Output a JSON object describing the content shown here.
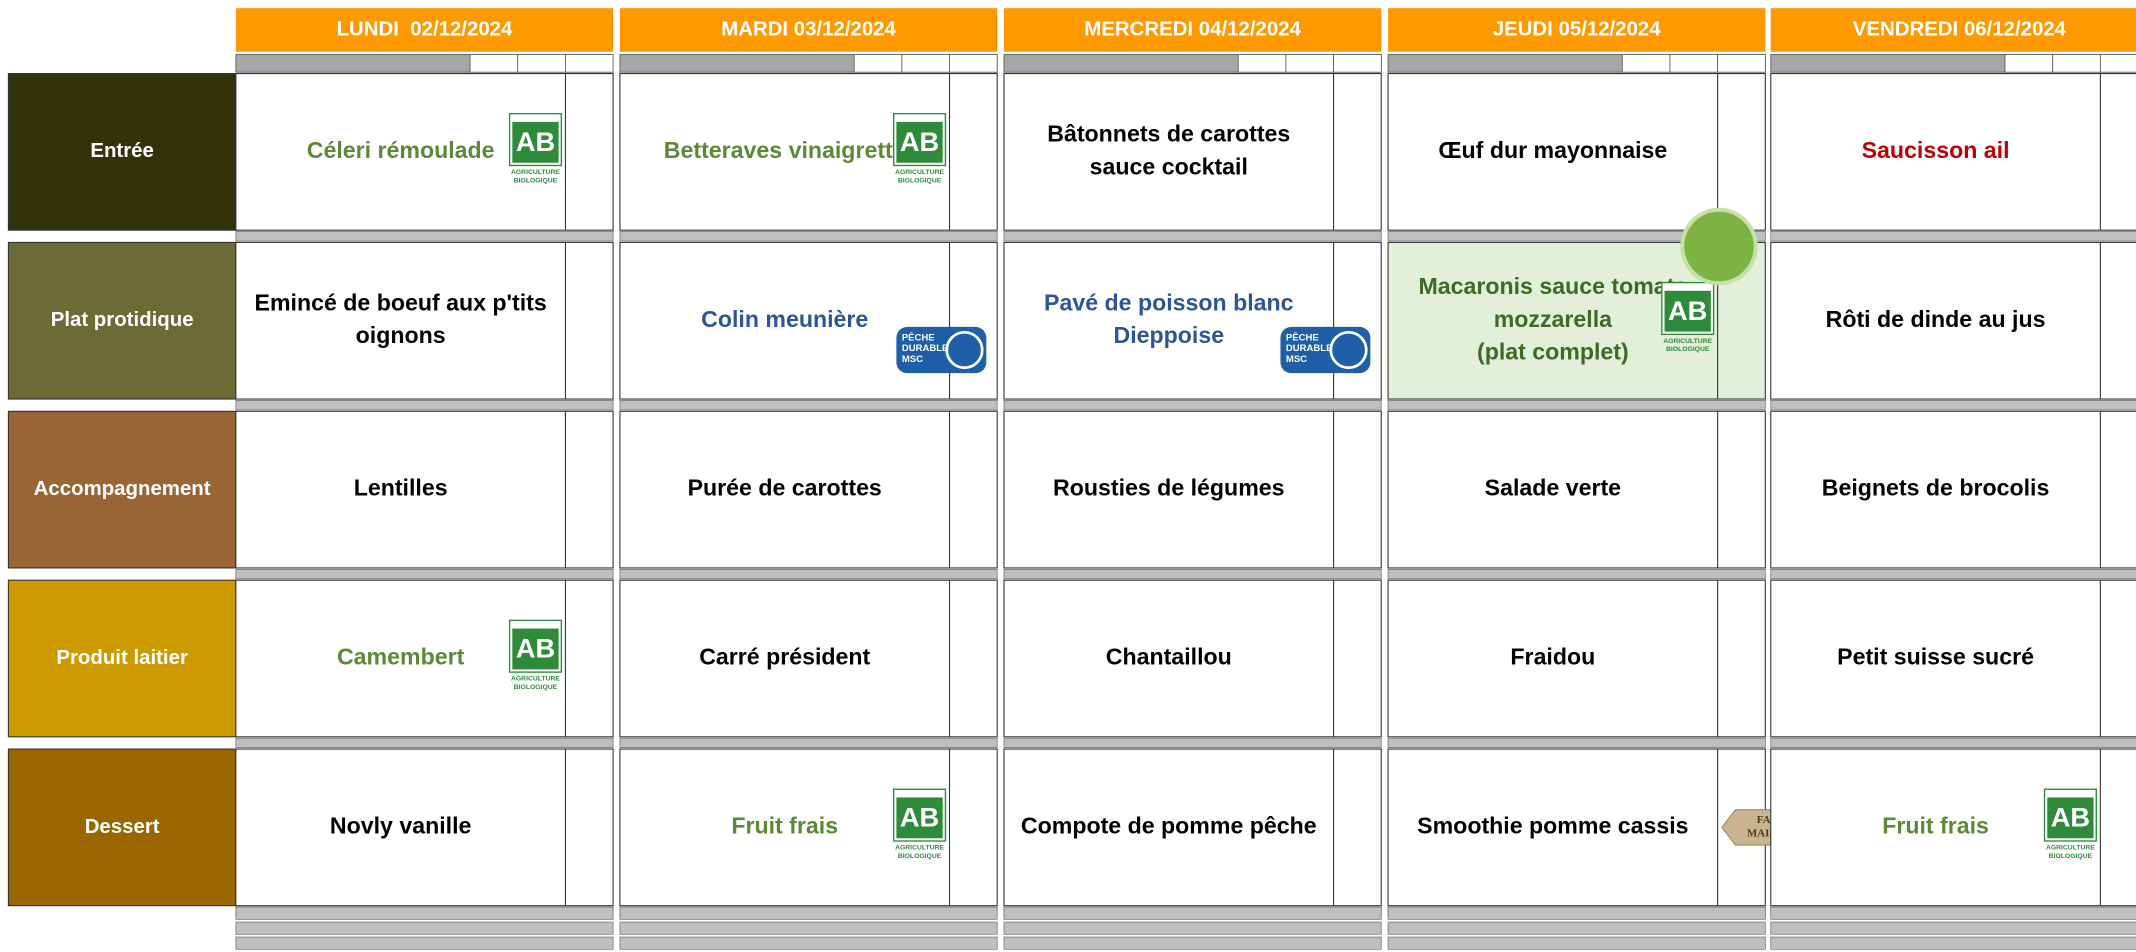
{
  "days": [
    "LUNDI  02/12/2024",
    "MARDI 03/12/2024",
    "MERCREDI 04/12/2024",
    "JEUDI 05/12/2024",
    "VENDREDI 06/12/2024"
  ],
  "rows": [
    {
      "label": "Entrée",
      "color": "#33330a",
      "cells": [
        {
          "lines": [
            "Céleri rémoulade"
          ],
          "color": "#5b8a35",
          "badge": {
            "kind": "ab",
            "lines": [
              "AB",
              "AGRICULTURE",
              "BIOLOGIQUE"
            ]
          }
        },
        {
          "lines": [
            "Betteraves vinaigrette"
          ],
          "color": "#5b8a35",
          "badge": {
            "kind": "ab",
            "lines": [
              "AB",
              "AGRICULTURE",
              "BIOLOGIQUE"
            ]
          }
        },
        {
          "lines": [
            "Bâtonnets de carottes",
            "sauce cocktail"
          ],
          "color": "#000000"
        },
        {
          "lines": [
            "Œuf dur mayonnaise"
          ],
          "color": "#000000"
        },
        {
          "lines": [
            "Saucisson ail"
          ],
          "color": "#c00000"
        }
      ]
    },
    {
      "label": "Plat protidique",
      "color": "#6b6b35",
      "cells": [
        {
          "lines": [
            "Emincé de boeuf aux p'tits",
            "oignons"
          ],
          "color": "#000000"
        },
        {
          "lines": [
            "Colin meunière"
          ],
          "color": "#2e5597",
          "badge": {
            "kind": "msc",
            "lines": [
              "PÊCHE",
              "DURABLE",
              "MSC"
            ]
          }
        },
        {
          "lines": [
            "Pavé de poisson blanc",
            "Dieppoise"
          ],
          "color": "#2e5597",
          "badge": {
            "kind": "msc",
            "lines": [
              "PÊCHE",
              "DURABLE",
              "MSC"
            ]
          }
        },
        {
          "lines": [
            "Macaronis sauce tomate",
            "mozzarella",
            "(plat complet)"
          ],
          "color": "#3f6a25",
          "bg": "#e2efd9",
          "badge": {
            "kind": "ab",
            "lines": [
              "AB",
              "AGRICULTURE",
              "BIOLOGIQUE"
            ]
          }
        },
        {
          "lines": [
            "Rôti de dinde au jus"
          ],
          "color": "#000000"
        }
      ]
    },
    {
      "label": "Accompagnement",
      "color": "#9a6535",
      "cells": [
        {
          "lines": [
            "Lentilles"
          ],
          "color": "#000000"
        },
        {
          "lines": [
            "Purée de carottes"
          ],
          "color": "#000000"
        },
        {
          "lines": [
            "Rousties de légumes"
          ],
          "color": "#000000"
        },
        {
          "lines": [
            "Salade verte"
          ],
          "color": "#000000"
        },
        {
          "lines": [
            "Beignets de brocolis"
          ],
          "color": "#000000"
        }
      ]
    },
    {
      "label": "Produit laitier",
      "color": "#cc9900",
      "cells": [
        {
          "lines": [
            "Camembert"
          ],
          "color": "#5b8a35",
          "badge": {
            "kind": "ab",
            "lines": [
              "AB",
              "AGRICULTURE",
              "BIOLOGIQUE"
            ]
          }
        },
        {
          "lines": [
            "Carré président"
          ],
          "color": "#000000"
        },
        {
          "lines": [
            "Chantaillou"
          ],
          "color": "#000000"
        },
        {
          "lines": [
            "Fraidou"
          ],
          "color": "#000000"
        },
        {
          "lines": [
            "Petit suisse sucré"
          ],
          "color": "#000000"
        }
      ]
    },
    {
      "label": "Dessert",
      "color": "#996600",
      "cells": [
        {
          "lines": [
            "Novly vanille"
          ],
          "color": "#000000"
        },
        {
          "lines": [
            "Fruit frais"
          ],
          "color": "#5b8a35",
          "badge": {
            "kind": "ab",
            "lines": [
              "AB",
              "AGRICULTURE",
              "BIOLOGIQUE"
            ]
          }
        },
        {
          "lines": [
            "Compote de pomme pêche"
          ],
          "color": "#000000"
        },
        {
          "lines": [
            "Smoothie pomme cassis"
          ],
          "color": "#000000",
          "badge": {
            "kind": "maison",
            "lines": [
              "FAIT",
              "MAISON"
            ]
          }
        },
        {
          "lines": [
            "Fruit frais"
          ],
          "color": "#5b8a35",
          "badge": {
            "kind": "ab",
            "lines": [
              "AB",
              "AGRICULTURE",
              "BIOLOGIQUE"
            ]
          }
        }
      ]
    }
  ]
}
